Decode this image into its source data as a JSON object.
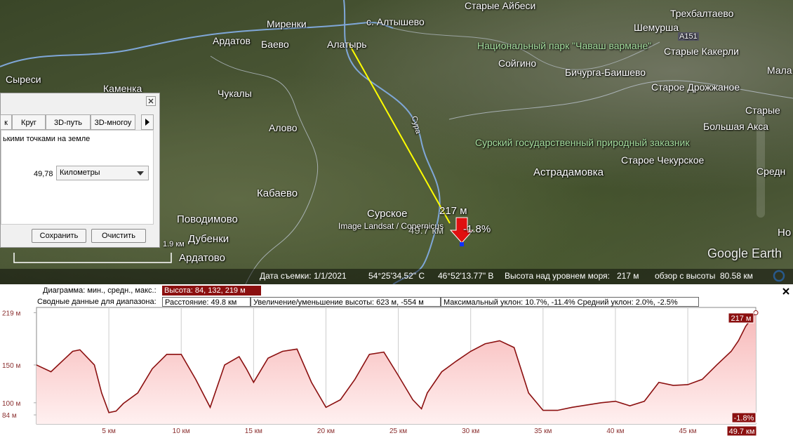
{
  "map": {
    "labels": [
      "Старые Айбеси",
      "Трехбалтаево",
      "Миренки",
      "с. Алтышево",
      "Шемурша",
      "Ардатов",
      "Баево",
      "Алатырь",
      "Национальный парк \"Чаваш вармане\"",
      "Старые Какерли",
      "Сойгино",
      "Мала",
      "Сыреси",
      "Бичурга-Баишево",
      "Каменка",
      "Старое Дрожжаное",
      "Чукалы",
      "Старые",
      "Алово",
      "Большая Акса",
      "Сурский государственный природный заказник",
      "Старое Чекурское",
      "Астрадамовка",
      "Средн",
      "Кабаево",
      "Сурское",
      "Поводимово",
      "Но",
      "Дубенки",
      "Ардатово",
      "Сура",
      "A151"
    ],
    "scale_label": "1.9 км",
    "attribution": "Image Landsat / Copernicus",
    "logo": "Google Earth",
    "route_elevation": "217 м",
    "route_distance": "49.7 км",
    "route_slope": "-1.8%"
  },
  "status_bar": {
    "date": "Дата съемки: 1/1/2021",
    "lat": "54°25'34.52\" С",
    "lon": "46°52'13.77\" В",
    "elevation": "Высота над уровнем моря:   217 м",
    "eye": "обзор с высоты  80.58 км"
  },
  "dialog": {
    "tabs": [
      "к",
      "Круг",
      "3D-путь",
      "3D-многоу"
    ],
    "text": "ькими точками на земле",
    "length": "49,78",
    "unit": "Километры",
    "save": "Сохранить",
    "clear": "Очистить"
  },
  "profile_header": {
    "chart_label": "Диаграмма: мин., средн., макс.:",
    "chart_value": "Высота: 84, 132, 219 м",
    "summary_label": "Сводные данные для диапазона:",
    "distance": "Расстояние: 49.8 км",
    "gain": "Увеличение/уменьшение высоты: 623 м, -554 м",
    "slope": "Максимальный уклон: 10.7%, -11.4% Средний уклон: 2.0%, -2.5%"
  },
  "chart_data": {
    "type": "area",
    "x": [
      0,
      1,
      2,
      2.5,
      3,
      4,
      4.5,
      5,
      5.5,
      6,
      7,
      8,
      9,
      10,
      11,
      12,
      13,
      14,
      14.5,
      15,
      16,
      17,
      18,
      19,
      20,
      21,
      22,
      23,
      24,
      25,
      26,
      26.6,
      27,
      28,
      29,
      30,
      31,
      32,
      33,
      34,
      35,
      36,
      37,
      38,
      39,
      40,
      41,
      42,
      43,
      44,
      45,
      46,
      47,
      48,
      48.5,
      49,
      49.7
    ],
    "values": [
      150,
      141,
      159,
      168,
      170,
      150,
      113,
      87,
      89,
      99,
      113,
      145,
      164,
      164,
      131,
      94,
      150,
      161,
      145,
      127,
      159,
      168,
      171,
      127,
      94,
      104,
      131,
      164,
      167,
      136,
      104,
      92,
      113,
      141,
      155,
      168,
      178,
      182,
      173,
      113,
      90,
      90,
      94,
      97,
      100,
      102,
      96,
      102,
      127,
      123,
      124,
      131,
      150,
      168,
      182,
      201,
      219
    ],
    "color": "#8b1010",
    "fill": "#f7b8b8",
    "xlim": [
      0,
      49.7
    ],
    "ylim": [
      72,
      226
    ],
    "xticks": [
      {
        "value": 5,
        "label": "5 км"
      },
      {
        "value": 10,
        "label": "10 км"
      },
      {
        "value": 15,
        "label": "15 км"
      },
      {
        "value": 20,
        "label": "20 км"
      },
      {
        "value": 25,
        "label": "25 км"
      },
      {
        "value": 30,
        "label": "30 км"
      },
      {
        "value": 35,
        "label": "35 км"
      },
      {
        "value": 40,
        "label": "40 км"
      },
      {
        "value": 45,
        "label": "45 км"
      }
    ],
    "yticks": [
      {
        "value": 84,
        "label": "84 м"
      },
      {
        "value": 100,
        "label": "100 м"
      },
      {
        "value": 150,
        "label": "150 м"
      },
      {
        "value": 219,
        "label": "219 м"
      }
    ],
    "grid": "x",
    "annotations": {
      "end_elevation": "217 м",
      "end_slope": "-1.8%",
      "end_distance": "49.7 км"
    }
  }
}
